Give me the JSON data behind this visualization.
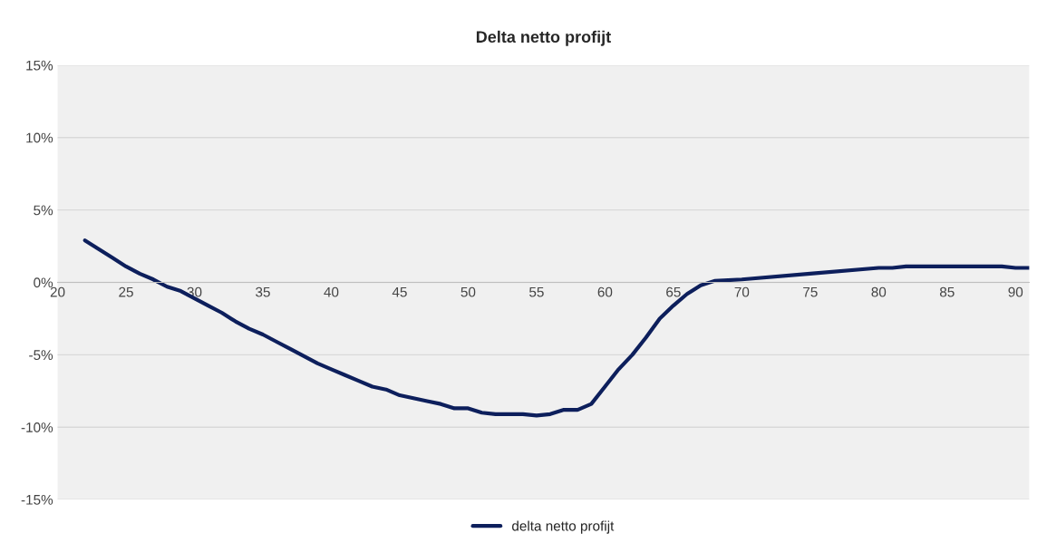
{
  "chart_data": {
    "type": "line",
    "title": "Delta netto profijt",
    "x": [
      22,
      23,
      24,
      25,
      26,
      27,
      28,
      29,
      30,
      31,
      32,
      33,
      34,
      35,
      36,
      37,
      38,
      39,
      40,
      41,
      42,
      43,
      44,
      45,
      46,
      47,
      48,
      49,
      50,
      51,
      52,
      53,
      54,
      55,
      56,
      57,
      58,
      59,
      60,
      61,
      62,
      63,
      64,
      65,
      66,
      67,
      68,
      70,
      75,
      80,
      81,
      82,
      89,
      90,
      91
    ],
    "series": [
      {
        "name": "delta netto profijt",
        "color": "#0d1f5c",
        "values": [
          2.9,
          2.3,
          1.7,
          1.1,
          0.6,
          0.2,
          -0.3,
          -0.6,
          -1.1,
          -1.6,
          -2.1,
          -2.7,
          -3.2,
          -3.6,
          -4.1,
          -4.6,
          -5.1,
          -5.6,
          -6.0,
          -6.4,
          -6.8,
          -7.2,
          -7.4,
          -7.8,
          -8.0,
          -8.2,
          -8.4,
          -8.7,
          -8.7,
          -9.0,
          -9.1,
          -9.1,
          -9.1,
          -9.2,
          -9.1,
          -8.8,
          -8.8,
          -8.4,
          -7.2,
          -6.0,
          -5.0,
          -3.8,
          -2.5,
          -1.6,
          -0.8,
          -0.2,
          0.1,
          0.2,
          0.6,
          1.0,
          1.0,
          1.1,
          1.1,
          1.0,
          1.0
        ]
      }
    ],
    "xlim": [
      20,
      91
    ],
    "xticks": [
      20,
      25,
      30,
      35,
      40,
      45,
      50,
      55,
      60,
      65,
      70,
      75,
      80,
      85,
      90
    ],
    "ylim": [
      -15,
      15
    ],
    "yticks": [
      {
        "value": -15,
        "label": "-15%"
      },
      {
        "value": -10,
        "label": "-10%"
      },
      {
        "value": -5,
        "label": "-5%"
      },
      {
        "value": 0,
        "label": "0%"
      },
      {
        "value": 5,
        "label": "5%"
      },
      {
        "value": 10,
        "label": "10%"
      },
      {
        "value": 15,
        "label": "15%"
      }
    ],
    "grid": "y",
    "legend": "bottom",
    "marker": "none",
    "line_style": "solid"
  }
}
